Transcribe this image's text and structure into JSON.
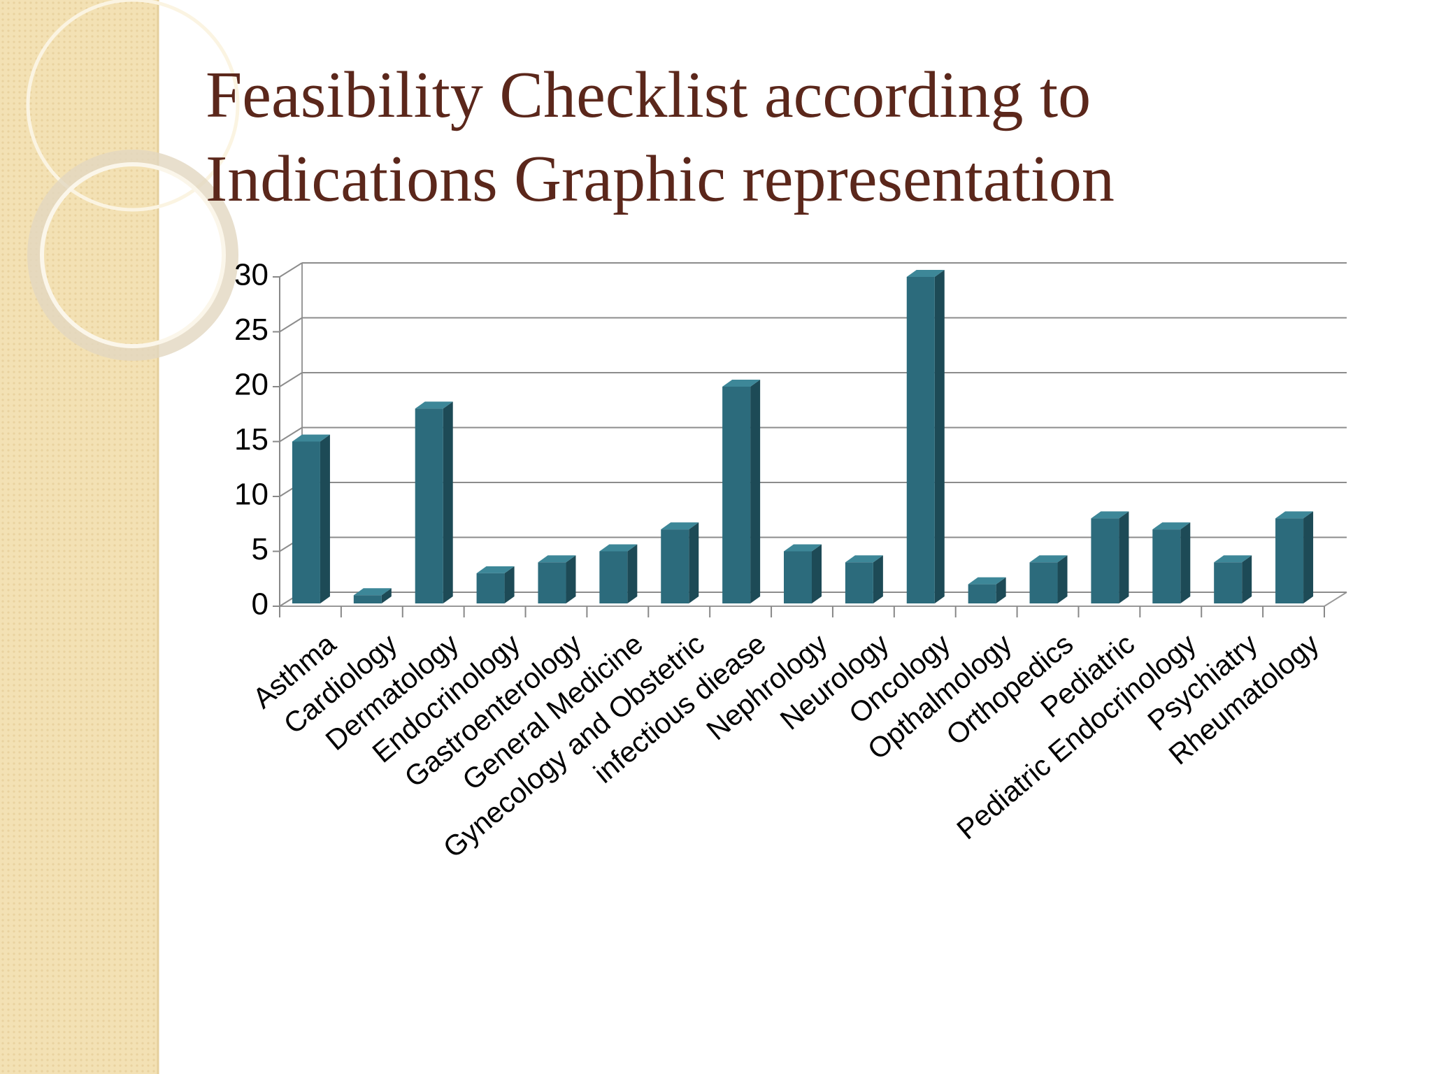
{
  "chart_data": {
    "type": "bar3d",
    "title_lines": [
      "Feasibility Checklist according to",
      "Indications Graphic representation"
    ],
    "categories": [
      "Asthma",
      "Cardiology",
      "Dermatology",
      "Endocrinology",
      "Gastroenterology",
      "General Medicine",
      "Gynecology and Obstetric",
      "infectious diease",
      "Nephrology",
      "Neurology",
      "Oncology",
      "Opthalmology",
      "Orthopedics",
      "Pediatric",
      "Pediatric Endocrinology",
      "Psychiatry",
      "Rheumatology"
    ],
    "values": [
      15,
      1,
      18,
      3,
      4,
      5,
      7,
      20,
      5,
      4,
      30,
      2,
      4,
      8,
      7,
      4,
      8
    ],
    "color": "#2c6b7c",
    "ylim": [
      0,
      30
    ],
    "yticks": [
      0,
      5,
      10,
      15,
      20,
      25,
      30
    ],
    "grid": true
  }
}
